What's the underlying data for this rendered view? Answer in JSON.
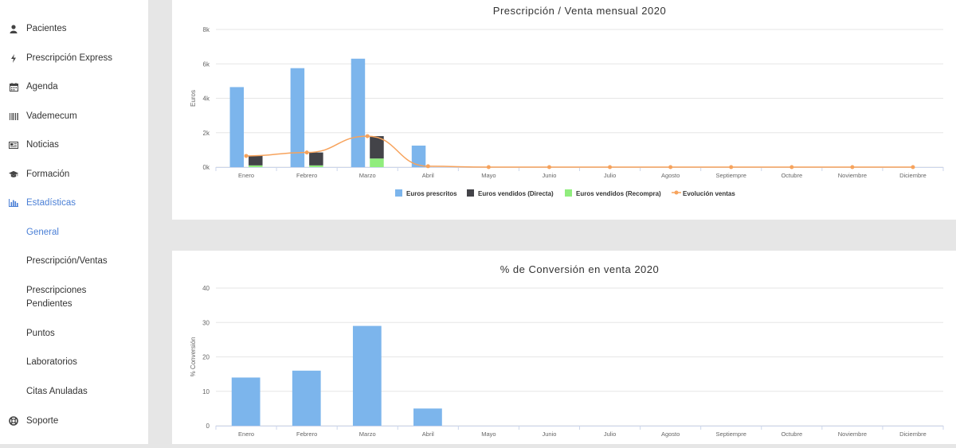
{
  "sidebar": {
    "items": [
      {
        "label": "Pacientes",
        "icon": "user-icon"
      },
      {
        "label": "Prescripción Express",
        "icon": "bolt-icon"
      },
      {
        "label": "Agenda",
        "icon": "calendar-icon"
      },
      {
        "label": "Vademecum",
        "icon": "barcode-icon"
      },
      {
        "label": "Noticias",
        "icon": "newspaper-icon"
      },
      {
        "label": "Formación",
        "icon": "graduation-cap-icon"
      },
      {
        "label": "Estadísticas",
        "icon": "bar-chart-icon"
      }
    ],
    "subitems": [
      "General",
      "Prescripción/Ventas",
      "Prescripciones Pendientes",
      "Puntos",
      "Laboratorios",
      "Citas Anuladas"
    ],
    "support": {
      "label": "Soporte",
      "icon": "life-ring-icon"
    }
  },
  "colors": {
    "accent": "#4a7fd6",
    "prescritos": "#7cb5ec",
    "directa": "#434348",
    "recompra": "#90ed7d",
    "evolucion": "#f7a35c"
  },
  "chart_data": [
    {
      "type": "bar",
      "title": "Prescripción / Venta mensual 2020",
      "ylabel": "Euros",
      "xlabel": "",
      "ylim": [
        0,
        8000
      ],
      "yticks": [
        "0k",
        "2k",
        "4k",
        "6k",
        "8k"
      ],
      "categories": [
        "Enero",
        "Febrero",
        "Marzo",
        "Abril",
        "Mayo",
        "Junio",
        "Julio",
        "Agosto",
        "Septiempre",
        "Octubre",
        "Noviembre",
        "Diciembre"
      ],
      "series": [
        {
          "name": "Euros prescritos",
          "kind": "bar",
          "values": [
            4650,
            5750,
            6300,
            1250,
            0,
            0,
            0,
            0,
            0,
            0,
            0,
            0
          ]
        },
        {
          "name": "Euros vendidos (Directa)",
          "kind": "stack",
          "values": [
            550,
            750,
            1300,
            0,
            0,
            0,
            0,
            0,
            0,
            0,
            0,
            0
          ]
        },
        {
          "name": "Euros vendidos (Recompra)",
          "kind": "stack",
          "values": [
            100,
            100,
            500,
            0,
            0,
            0,
            0,
            0,
            0,
            0,
            0,
            0
          ]
        },
        {
          "name": "Evolución ventas",
          "kind": "line",
          "values": [
            650,
            850,
            1800,
            50,
            0,
            0,
            0,
            0,
            0,
            0,
            0,
            0
          ]
        }
      ]
    },
    {
      "type": "bar",
      "title": "% de Conversión en venta 2020",
      "ylabel": "% Conversión",
      "xlabel": "",
      "ylim": [
        0,
        40
      ],
      "yticks": [
        "0",
        "10",
        "20",
        "30",
        "40"
      ],
      "categories": [
        "Enero",
        "Febrero",
        "Marzo",
        "Abril",
        "Mayo",
        "Junio",
        "Julio",
        "Agosto",
        "Septiempre",
        "Octubre",
        "Noviembre",
        "Diciembre"
      ],
      "series": [
        {
          "name": "% Conversión",
          "kind": "bar",
          "values": [
            14,
            16,
            29,
            5,
            0,
            0,
            0,
            0,
            0,
            0,
            0,
            0
          ]
        }
      ]
    }
  ]
}
